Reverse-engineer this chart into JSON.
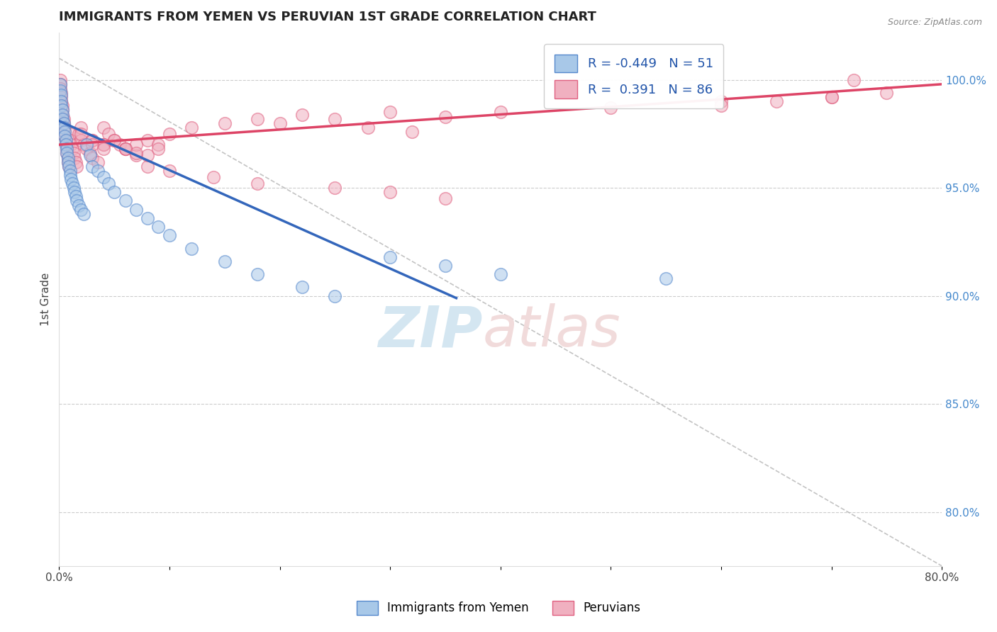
{
  "title": "IMMIGRANTS FROM YEMEN VS PERUVIAN 1ST GRADE CORRELATION CHART",
  "source": "Source: ZipAtlas.com",
  "ylabel": "1st Grade",
  "x_min": 0.0,
  "x_max": 0.8,
  "y_min": 0.775,
  "y_max": 1.022,
  "right_ytick_vals": [
    1.0,
    0.95,
    0.9,
    0.85,
    0.8
  ],
  "right_yticklabels": [
    "100.0%",
    "95.0%",
    "90.0%",
    "85.0%",
    "80.0%"
  ],
  "xtick_vals": [
    0.0,
    0.1,
    0.2,
    0.3,
    0.4,
    0.5,
    0.6,
    0.7,
    0.8
  ],
  "xticklabels": [
    "0.0%",
    "",
    "",
    "",
    "",
    "",
    "",
    "",
    "80.0%"
  ],
  "legend_R1": "-0.449",
  "legend_N1": "51",
  "legend_R2": "0.391",
  "legend_N2": "86",
  "blue_color": "#a8c8e8",
  "pink_color": "#f0b0c0",
  "blue_edge_color": "#5588cc",
  "pink_edge_color": "#e06080",
  "blue_line_color": "#3366bb",
  "pink_line_color": "#dd4466",
  "blue_line_x": [
    0.0,
    0.36
  ],
  "blue_line_y": [
    0.981,
    0.899
  ],
  "pink_line_x": [
    0.0,
    0.8
  ],
  "pink_line_y": [
    0.97,
    0.998
  ],
  "dash_line_x": [
    0.0,
    0.8
  ],
  "dash_line_y": [
    1.01,
    0.775
  ],
  "blue_scatter_x": [
    0.001,
    0.001,
    0.002,
    0.002,
    0.002,
    0.003,
    0.003,
    0.003,
    0.004,
    0.004,
    0.005,
    0.005,
    0.006,
    0.006,
    0.007,
    0.007,
    0.008,
    0.008,
    0.009,
    0.01,
    0.01,
    0.011,
    0.012,
    0.013,
    0.014,
    0.015,
    0.016,
    0.018,
    0.02,
    0.022,
    0.025,
    0.028,
    0.03,
    0.035,
    0.04,
    0.045,
    0.05,
    0.06,
    0.07,
    0.08,
    0.09,
    0.1,
    0.12,
    0.15,
    0.18,
    0.22,
    0.25,
    0.3,
    0.35,
    0.4,
    0.55
  ],
  "blue_scatter_y": [
    0.998,
    0.995,
    0.993,
    0.99,
    0.988,
    0.986,
    0.984,
    0.982,
    0.98,
    0.978,
    0.976,
    0.974,
    0.972,
    0.97,
    0.968,
    0.966,
    0.964,
    0.962,
    0.96,
    0.958,
    0.956,
    0.954,
    0.952,
    0.95,
    0.948,
    0.946,
    0.944,
    0.942,
    0.94,
    0.938,
    0.97,
    0.965,
    0.96,
    0.958,
    0.955,
    0.952,
    0.948,
    0.944,
    0.94,
    0.936,
    0.932,
    0.928,
    0.922,
    0.916,
    0.91,
    0.904,
    0.9,
    0.918,
    0.914,
    0.91,
    0.908
  ],
  "pink_scatter_x": [
    0.001,
    0.001,
    0.001,
    0.002,
    0.002,
    0.002,
    0.003,
    0.003,
    0.003,
    0.004,
    0.004,
    0.005,
    0.005,
    0.005,
    0.006,
    0.006,
    0.007,
    0.007,
    0.008,
    0.008,
    0.009,
    0.01,
    0.01,
    0.011,
    0.012,
    0.013,
    0.014,
    0.015,
    0.016,
    0.018,
    0.02,
    0.022,
    0.025,
    0.028,
    0.03,
    0.035,
    0.04,
    0.045,
    0.05,
    0.055,
    0.06,
    0.07,
    0.08,
    0.09,
    0.1,
    0.12,
    0.15,
    0.18,
    0.22,
    0.25,
    0.3,
    0.35,
    0.4,
    0.5,
    0.6,
    0.7,
    0.75,
    0.2,
    0.28,
    0.32,
    0.08,
    0.1,
    0.14,
    0.18,
    0.25,
    0.3,
    0.35,
    0.6,
    0.65,
    0.7,
    0.04,
    0.06,
    0.08,
    0.05,
    0.07,
    0.09,
    0.03,
    0.04,
    0.06,
    0.07,
    0.02,
    0.02,
    0.03,
    0.03,
    0.04,
    0.72
  ],
  "pink_scatter_y": [
    1.0,
    0.998,
    0.996,
    0.994,
    0.992,
    0.99,
    0.988,
    0.986,
    0.984,
    0.982,
    0.98,
    0.978,
    0.976,
    0.974,
    0.972,
    0.97,
    0.968,
    0.966,
    0.964,
    0.962,
    0.96,
    0.975,
    0.972,
    0.97,
    0.968,
    0.966,
    0.964,
    0.962,
    0.96,
    0.975,
    0.972,
    0.97,
    0.968,
    0.966,
    0.964,
    0.962,
    0.978,
    0.975,
    0.972,
    0.97,
    0.968,
    0.965,
    0.972,
    0.97,
    0.975,
    0.978,
    0.98,
    0.982,
    0.984,
    0.982,
    0.985,
    0.983,
    0.985,
    0.987,
    0.99,
    0.992,
    0.994,
    0.98,
    0.978,
    0.976,
    0.96,
    0.958,
    0.955,
    0.952,
    0.95,
    0.948,
    0.945,
    0.988,
    0.99,
    0.992,
    0.97,
    0.968,
    0.965,
    0.972,
    0.97,
    0.968,
    0.972,
    0.97,
    0.968,
    0.966,
    0.978,
    0.975,
    0.972,
    0.97,
    0.968,
    1.0
  ],
  "watermark_zip_color": "#d0e4f0",
  "watermark_atlas_color": "#f0d8d8",
  "bottom_legend_labels": [
    "Immigrants from Yemen",
    "Peruvians"
  ]
}
